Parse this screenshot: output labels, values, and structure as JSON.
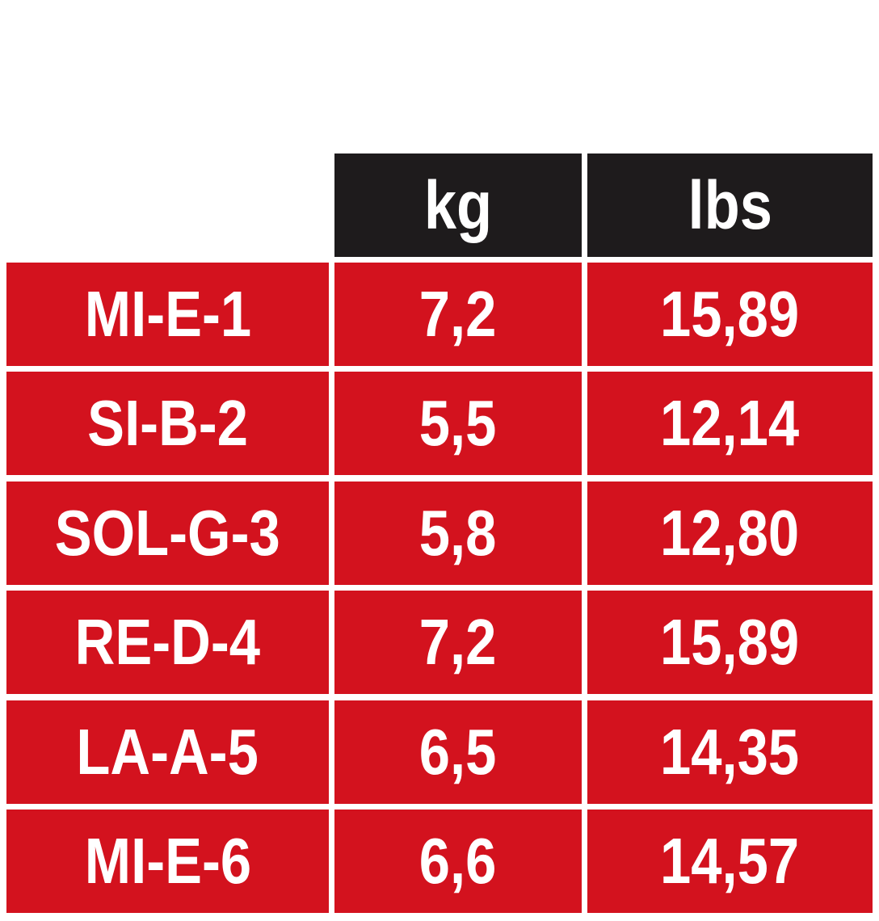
{
  "table": {
    "header": [
      "kg",
      "lbs"
    ],
    "rows": [
      [
        "MI-E-1",
        "7,2",
        "15,89"
      ],
      [
        "SI-B-2",
        "5,5",
        "12,14"
      ],
      [
        "SOL-G-3",
        "5,8",
        "12,80"
      ],
      [
        "RE-D-4",
        "7,2",
        "15,89"
      ],
      [
        "LA-A-5",
        "6,5",
        "14,35"
      ],
      [
        "MI-E-6",
        "6,6",
        "14,57"
      ]
    ]
  }
}
